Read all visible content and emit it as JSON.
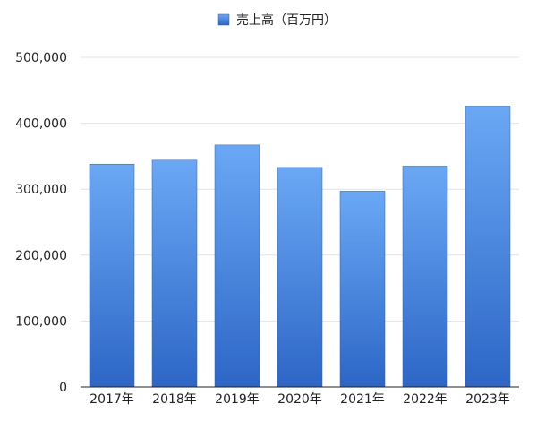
{
  "chart_data": {
    "type": "bar",
    "legend": {
      "label": "売上高（百万円）",
      "placement": "top-center",
      "color": "#4a8be3"
    },
    "categories": [
      "2017年",
      "2018年",
      "2019年",
      "2020年",
      "2021年",
      "2022年",
      "2023年"
    ],
    "series": [
      {
        "name": "売上高（百万円）",
        "values": [
          338000,
          344000,
          367000,
          333000,
          297000,
          335000,
          426000
        ]
      }
    ],
    "ylim": [
      0,
      500000
    ],
    "yticks": [
      0,
      100000,
      200000,
      300000,
      400000,
      500000
    ],
    "ytick_labels": [
      "0",
      "100,000",
      "200,000",
      "300,000",
      "400,000",
      "500,000"
    ],
    "grid": true,
    "colors": {
      "bar_top": "#6aa8f5",
      "bar_bottom": "#2d66c6",
      "bar_edge": "#2a5fb8",
      "grid": "#e3e3e3",
      "axis": "#222222",
      "text": "#222222"
    }
  }
}
